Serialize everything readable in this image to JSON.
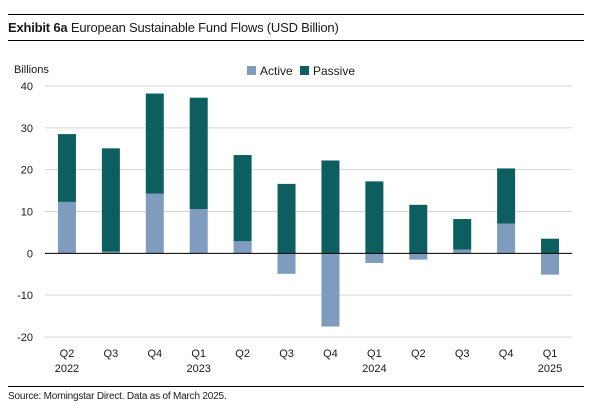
{
  "header": {
    "exhibit_label": "Exhibit 6a",
    "title": "European Sustainable Fund Flows (USD Billion)"
  },
  "footer": {
    "source": "Source: Morningstar Direct. Data as of March 2025."
  },
  "colors": {
    "active": "#7f9bbd",
    "passive": "#0c5e5f",
    "grid": "#d6d6d6",
    "axis": "#000000"
  },
  "chart_data": {
    "type": "bar",
    "stacked": true,
    "title": "European Sustainable Fund Flows (USD Billion)",
    "ylabel": "Billions",
    "ylim": [
      -20,
      40
    ],
    "yticks": [
      40,
      30,
      20,
      10,
      0,
      -10,
      -20
    ],
    "grid": true,
    "legend_position": "top",
    "categories": [
      "Q2 2022",
      "Q3",
      "Q4",
      "Q1 2023",
      "Q2",
      "Q3",
      "Q4",
      "Q1 2024",
      "Q2",
      "Q3",
      "Q4",
      "Q1 2025"
    ],
    "category_lines": [
      [
        "Q2",
        "2022"
      ],
      [
        "Q3",
        ""
      ],
      [
        "Q4",
        ""
      ],
      [
        "Q1",
        "2023"
      ],
      [
        "Q2",
        ""
      ],
      [
        "Q3",
        ""
      ],
      [
        "Q4",
        ""
      ],
      [
        "Q1",
        "2024"
      ],
      [
        "Q2",
        ""
      ],
      [
        "Q3",
        ""
      ],
      [
        "Q4",
        ""
      ],
      [
        "Q1",
        "2025"
      ]
    ],
    "series": [
      {
        "name": "Active",
        "values": [
          12.3,
          0.4,
          14.3,
          10.6,
          2.9,
          -4.9,
          -17.5,
          -2.3,
          -1.5,
          0.9,
          7.1,
          -5.1
        ]
      },
      {
        "name": "Passive",
        "values": [
          16.2,
          24.7,
          23.9,
          26.6,
          20.6,
          16.6,
          22.2,
          17.2,
          11.6,
          7.3,
          13.2,
          3.5
        ]
      }
    ]
  }
}
